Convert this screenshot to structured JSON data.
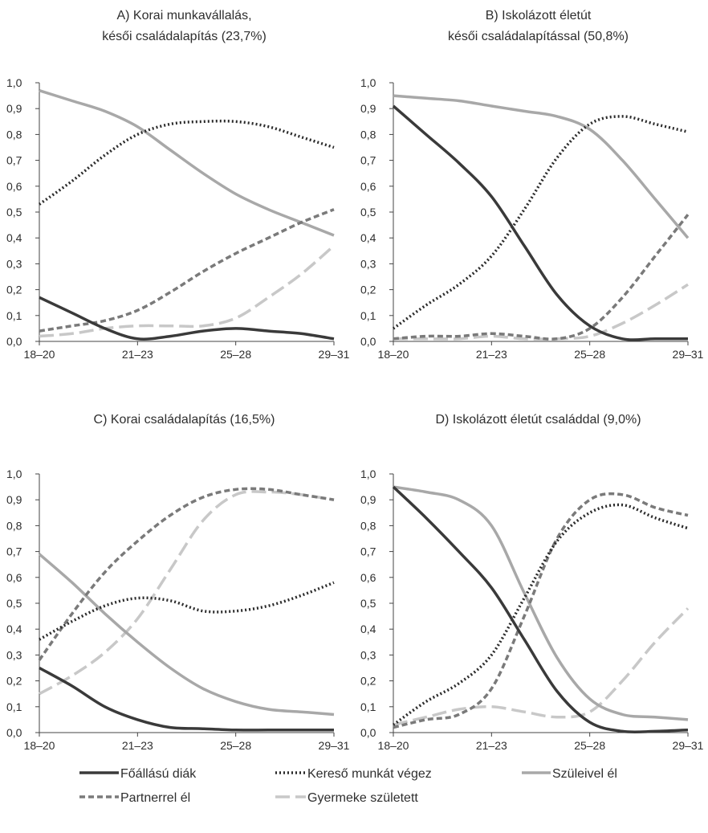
{
  "legend": {
    "items": [
      {
        "key": "foallasu",
        "label": "Főállású diák"
      },
      {
        "key": "kereso",
        "label": "Kereső munkát végez"
      },
      {
        "key": "szuleivel",
        "label": "Szüleivel él"
      },
      {
        "key": "partner",
        "label": "Partnerrel él"
      },
      {
        "key": "gyermek",
        "label": "Gyermeke született"
      }
    ]
  },
  "styles": {
    "foallasu": {
      "color": "#3a3a3a",
      "dash": "none"
    },
    "kereso": {
      "color": "#2b2b2b",
      "dash": "2,3"
    },
    "szuleivel": {
      "color": "#a8a8a8",
      "dash": "none"
    },
    "partner": {
      "color": "#7a7a7a",
      "dash": "7,4"
    },
    "gyermek": {
      "color": "#c8c8c8",
      "dash": "18,7"
    }
  },
  "chart_data": [
    {
      "type": "line",
      "title_lines": [
        "A) Korai munkavállalás,",
        "késői családalapítás (23,7%)"
      ],
      "categories": [
        "18–20",
        "21–23",
        "25–28",
        "29–31"
      ],
      "x": [
        0,
        1,
        2,
        3,
        4,
        5,
        6,
        7,
        8,
        9
      ],
      "ylim": [
        0,
        1
      ],
      "yticks": [
        "0,0",
        "0,1",
        "0,2",
        "0,3",
        "0,4",
        "0,5",
        "0,6",
        "0,7",
        "0,8",
        "0,9",
        "1,0"
      ],
      "series": [
        {
          "key": "foallasu",
          "name": "Főállású diák",
          "values": [
            0.17,
            0.11,
            0.05,
            0.01,
            0.02,
            0.04,
            0.05,
            0.04,
            0.03,
            0.01
          ]
        },
        {
          "key": "kereso",
          "name": "Kereső munkát végez",
          "values": [
            0.53,
            0.62,
            0.72,
            0.8,
            0.84,
            0.85,
            0.85,
            0.83,
            0.79,
            0.75
          ]
        },
        {
          "key": "szuleivel",
          "name": "Szüleivel él",
          "values": [
            0.97,
            0.93,
            0.89,
            0.83,
            0.74,
            0.65,
            0.57,
            0.51,
            0.46,
            0.41
          ]
        },
        {
          "key": "partner",
          "name": "Partnerrel él",
          "values": [
            0.04,
            0.06,
            0.08,
            0.12,
            0.19,
            0.27,
            0.34,
            0.4,
            0.46,
            0.51
          ]
        },
        {
          "key": "gyermek",
          "name": "Gyermeke született",
          "values": [
            0.02,
            0.03,
            0.05,
            0.06,
            0.06,
            0.06,
            0.09,
            0.17,
            0.26,
            0.37
          ]
        }
      ]
    },
    {
      "type": "line",
      "title_lines": [
        "B) Iskolázott életút",
        "késői családalapítással (50,8%)"
      ],
      "categories": [
        "18–20",
        "21–23",
        "25–28",
        "29–31"
      ],
      "x": [
        0,
        1,
        2,
        3,
        4,
        5,
        6,
        7,
        8,
        9
      ],
      "ylim": [
        0,
        1
      ],
      "yticks": [
        "0,0",
        "0,1",
        "0,2",
        "0,3",
        "0,4",
        "0,5",
        "0,6",
        "0,7",
        "0,8",
        "0,9",
        "1,0"
      ],
      "series": [
        {
          "key": "foallasu",
          "name": "Főállású diák",
          "values": [
            0.91,
            0.8,
            0.69,
            0.56,
            0.37,
            0.18,
            0.06,
            0.01,
            0.01,
            0.01
          ]
        },
        {
          "key": "kereso",
          "name": "Kereső munkát végez",
          "values": [
            0.05,
            0.14,
            0.22,
            0.33,
            0.51,
            0.71,
            0.84,
            0.87,
            0.84,
            0.81
          ]
        },
        {
          "key": "szuleivel",
          "name": "Szüleivel él",
          "values": [
            0.95,
            0.94,
            0.93,
            0.91,
            0.89,
            0.87,
            0.82,
            0.7,
            0.55,
            0.4
          ]
        },
        {
          "key": "partner",
          "name": "Partnerrel él",
          "values": [
            0.01,
            0.02,
            0.02,
            0.03,
            0.02,
            0.01,
            0.05,
            0.17,
            0.33,
            0.49
          ]
        },
        {
          "key": "gyermek",
          "name": "Gyermeke született",
          "values": [
            0.01,
            0.01,
            0.01,
            0.02,
            0.01,
            0.01,
            0.02,
            0.07,
            0.14,
            0.22
          ]
        }
      ]
    },
    {
      "type": "line",
      "title_lines": [
        "C) Korai családalapítás (16,5%)"
      ],
      "categories": [
        "18–20",
        "21–23",
        "25–28",
        "29–31"
      ],
      "x": [
        0,
        1,
        2,
        3,
        4,
        5,
        6,
        7,
        8,
        9
      ],
      "ylim": [
        0,
        1
      ],
      "yticks": [
        "0,0",
        "0,1",
        "0,2",
        "0,3",
        "0,4",
        "0,5",
        "0,6",
        "0,7",
        "0,8",
        "0,9",
        "1,0"
      ],
      "series": [
        {
          "key": "foallasu",
          "name": "Főállású diák",
          "values": [
            0.25,
            0.18,
            0.1,
            0.05,
            0.02,
            0.015,
            0.01,
            0.01,
            0.01,
            0.01
          ]
        },
        {
          "key": "kereso",
          "name": "Kereső munkát végez",
          "values": [
            0.36,
            0.43,
            0.49,
            0.52,
            0.51,
            0.47,
            0.47,
            0.49,
            0.53,
            0.58
          ]
        },
        {
          "key": "szuleivel",
          "name": "Szüleivel él",
          "values": [
            0.69,
            0.58,
            0.46,
            0.35,
            0.25,
            0.17,
            0.12,
            0.09,
            0.08,
            0.07
          ]
        },
        {
          "key": "partner",
          "name": "Partnerrel él",
          "values": [
            0.28,
            0.46,
            0.62,
            0.74,
            0.84,
            0.91,
            0.94,
            0.94,
            0.92,
            0.9
          ]
        },
        {
          "key": "gyermek",
          "name": "Gyermeke született",
          "values": [
            0.15,
            0.22,
            0.31,
            0.44,
            0.63,
            0.82,
            0.92,
            0.93,
            0.92,
            0.9
          ]
        }
      ]
    },
    {
      "type": "line",
      "title_lines": [
        "D) Iskolázott életút családdal (9,0%)"
      ],
      "categories": [
        "18–20",
        "21–23",
        "25–28",
        "29–31"
      ],
      "x": [
        0,
        1,
        2,
        3,
        4,
        5,
        6,
        7,
        8,
        9
      ],
      "ylim": [
        0,
        1
      ],
      "yticks": [
        "0,0",
        "0,1",
        "0,2",
        "0,3",
        "0,4",
        "0,5",
        "0,6",
        "0,7",
        "0,8",
        "0,9",
        "1,0"
      ],
      "series": [
        {
          "key": "foallasu",
          "name": "Főállású diák",
          "values": [
            0.95,
            0.83,
            0.7,
            0.56,
            0.36,
            0.16,
            0.04,
            0.005,
            0.005,
            0.01
          ]
        },
        {
          "key": "kereso",
          "name": "Kereső munkát végez",
          "values": [
            0.03,
            0.12,
            0.19,
            0.3,
            0.52,
            0.74,
            0.85,
            0.88,
            0.83,
            0.79
          ]
        },
        {
          "key": "szuleivel",
          "name": "Szüleivel él",
          "values": [
            0.95,
            0.93,
            0.9,
            0.8,
            0.54,
            0.29,
            0.13,
            0.07,
            0.06,
            0.05
          ]
        },
        {
          "key": "partner",
          "name": "Partnerrel él",
          "values": [
            0.02,
            0.05,
            0.07,
            0.17,
            0.45,
            0.75,
            0.9,
            0.92,
            0.87,
            0.84
          ]
        },
        {
          "key": "gyermek",
          "name": "Gyermeke született",
          "values": [
            0.03,
            0.06,
            0.09,
            0.1,
            0.08,
            0.06,
            0.08,
            0.2,
            0.35,
            0.48
          ]
        }
      ]
    }
  ]
}
